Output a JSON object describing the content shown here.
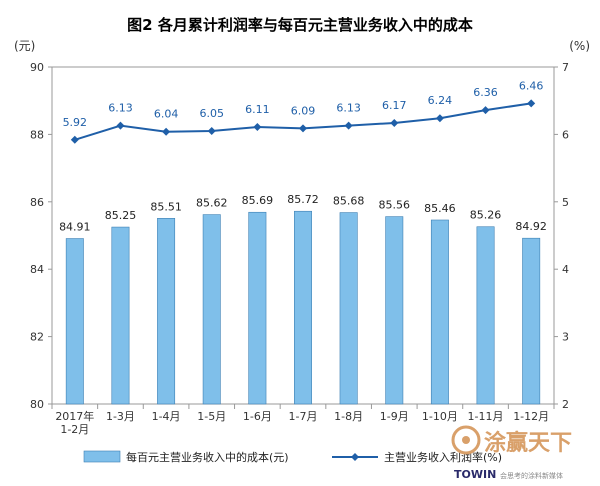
{
  "chart_data": {
    "type": "bar",
    "title": "图2 各月累计利润率与每百元主营业务收入中的成本",
    "left_unit": "(元)",
    "right_unit": "(%)",
    "categories": [
      "2017年\n1-2月",
      "1-3月",
      "1-4月",
      "1-5月",
      "1-6月",
      "1-7月",
      "1-8月",
      "1-9月",
      "1-10月",
      "1-11月",
      "1-12月"
    ],
    "left_axis": {
      "min": 80,
      "max": 90,
      "ticks": [
        80,
        82,
        84,
        86,
        88,
        90
      ]
    },
    "right_axis": {
      "min": 2,
      "max": 7,
      "ticks": [
        2,
        3,
        4,
        5,
        6,
        7
      ]
    },
    "series": [
      {
        "name": "每百元主营业务收入中的成本(元)",
        "type": "bar",
        "axis": "left",
        "color": "#7fbfea",
        "values": [
          84.91,
          85.25,
          85.51,
          85.62,
          85.69,
          85.72,
          85.68,
          85.56,
          85.46,
          85.26,
          84.92
        ]
      },
      {
        "name": "主营业务收入利润率(%)",
        "type": "line",
        "axis": "right",
        "color": "#1f5fa8",
        "values": [
          5.92,
          6.13,
          6.04,
          6.05,
          6.11,
          6.09,
          6.13,
          6.17,
          6.24,
          6.36,
          6.46
        ]
      }
    ],
    "grid": false,
    "legend_position": "bottom"
  },
  "watermark": {
    "chinese": "涂赢天下",
    "english": "TOWIN",
    "tagline": "会思考的涂料新媒体"
  }
}
